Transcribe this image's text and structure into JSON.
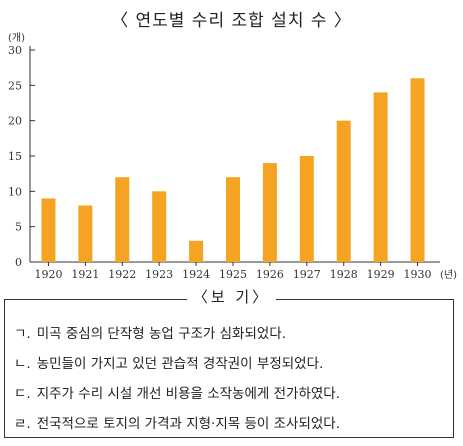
{
  "chart_data": {
    "type": "bar",
    "title": "〈 연도별 수리 조합 설치 수 〉",
    "y_unit": "(개)",
    "x_unit": "(년)",
    "categories": [
      "1920",
      "1921",
      "1922",
      "1923",
      "1924",
      "1925",
      "1926",
      "1927",
      "1928",
      "1929",
      "1930"
    ],
    "values": [
      9,
      8,
      12,
      10,
      3,
      12,
      14,
      15,
      20,
      24,
      26
    ],
    "ylim": [
      0,
      30
    ],
    "yticks": [
      0,
      5,
      10,
      15,
      20,
      25,
      30
    ],
    "grid": false,
    "bar_color": "#f4a323"
  },
  "options": {
    "header": "〈보  기〉",
    "items": [
      {
        "marker": "ㄱ.",
        "text": "미곡 중심의 단작형 농업 구조가 심화되었다."
      },
      {
        "marker": "ㄴ.",
        "text": "농민들이 가지고 있던 관습적 경작권이 부정되었다."
      },
      {
        "marker": "ㄷ.",
        "text": "지주가 수리 시설 개선 비용을 소작농에게 전가하였다."
      },
      {
        "marker": "ㄹ.",
        "text": "전국적으로 토지의 가격과 지형·지목 등이 조사되었다."
      }
    ]
  }
}
